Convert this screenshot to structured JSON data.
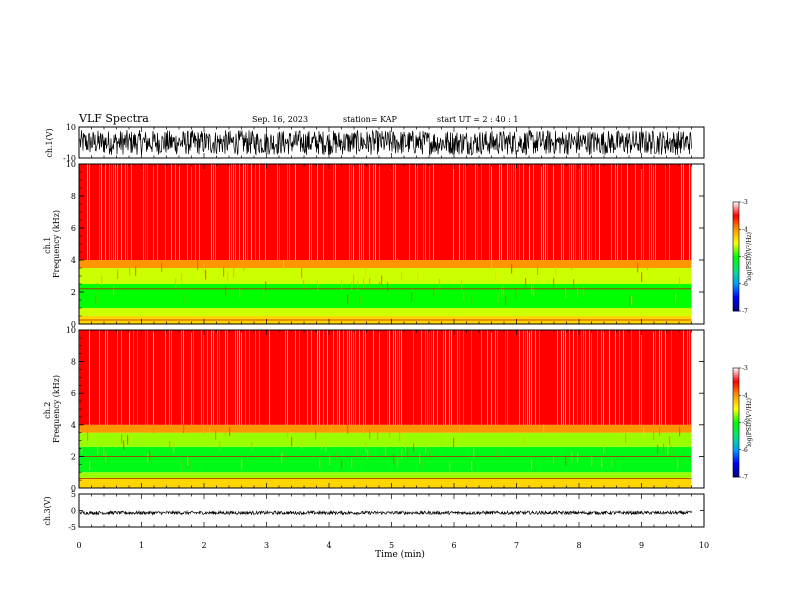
{
  "header": {
    "title": "VLF Spectra",
    "date": "Sep. 16, 2023",
    "station": "station= KAP",
    "start": "start UT =  2 : 40 : 1"
  },
  "chart_data": [
    {
      "type": "line",
      "name_id": "ch1-waveform",
      "ylabel": "ch.1(V)",
      "ylim": [
        -10,
        10
      ],
      "y_ticks": [
        "10",
        "-10"
      ],
      "xlim": [
        0,
        10
      ],
      "data_end_min": 9.8,
      "amplitude": [
        -8,
        8
      ],
      "color": "#000000"
    },
    {
      "type": "heatmap",
      "name_id": "ch1-spectrogram",
      "ylabel": "ch.1\nFrequency (kHz)",
      "ylabel_lines": [
        "ch.1",
        "Frequency (kHz)"
      ],
      "xlim": [
        0,
        10
      ],
      "ylim": [
        0,
        10
      ],
      "y_ticks": [
        "0",
        "2",
        "4",
        "6",
        "8",
        "10"
      ],
      "data_end_min": 9.8,
      "bands": [
        {
          "from_khz": 0,
          "to_khz": 0.5,
          "log_psd": -4.3
        },
        {
          "from_khz": 0.5,
          "to_khz": 1.0,
          "log_psd": -4.6
        },
        {
          "from_khz": 1.0,
          "to_khz": 2.5,
          "log_psd": -5.0
        },
        {
          "from_khz": 2.5,
          "to_khz": 3.5,
          "log_psd": -4.6
        },
        {
          "from_khz": 3.5,
          "to_khz": 4.0,
          "log_psd": -4.0
        },
        {
          "from_khz": 4.0,
          "to_khz": 10.0,
          "log_psd": -3.5
        }
      ],
      "lines_khz": [
        2.2,
        0.25
      ],
      "colorbar": {
        "label": "log(PSD)(V²/Hz)",
        "range": [
          -7,
          -3
        ],
        "ticks": [
          "-3",
          "-4",
          "-5",
          "-6",
          "-7"
        ],
        "colors": [
          "#ffffff",
          "#ff0000",
          "#ffa000",
          "#ffff00",
          "#00ff00",
          "#00c0ff",
          "#0000ff",
          "#000080"
        ]
      }
    },
    {
      "type": "heatmap",
      "name_id": "ch2-spectrogram",
      "ylabel": "ch.2\nFrequency (kHz)",
      "ylabel_lines": [
        "ch.2",
        "Frequency (kHz)"
      ],
      "xlim": [
        0,
        10
      ],
      "ylim": [
        0,
        10
      ],
      "y_ticks": [
        "0",
        "2",
        "4",
        "6",
        "8",
        "10"
      ],
      "data_end_min": 9.8,
      "bands": [
        {
          "from_khz": 0,
          "to_khz": 0.6,
          "log_psd": -4.3
        },
        {
          "from_khz": 0.6,
          "to_khz": 1.0,
          "log_psd": -4.7
        },
        {
          "from_khz": 1.0,
          "to_khz": 2.6,
          "log_psd": -5.1
        },
        {
          "from_khz": 2.6,
          "to_khz": 3.5,
          "log_psd": -4.7
        },
        {
          "from_khz": 3.5,
          "to_khz": 4.0,
          "log_psd": -4.0
        },
        {
          "from_khz": 4.0,
          "to_khz": 10.0,
          "log_psd": -3.5
        }
      ],
      "lines_khz": [
        2.0,
        0.6
      ],
      "colorbar": {
        "label": "log(PSD)(V²/Hz)",
        "range": [
          -7,
          -3
        ],
        "ticks": [
          "-3",
          "-4",
          "-5",
          "-6",
          "-7"
        ],
        "colors": [
          "#ffffff",
          "#ff0000",
          "#ffa000",
          "#ffff00",
          "#00ff00",
          "#00c0ff",
          "#0000ff",
          "#000080"
        ]
      }
    },
    {
      "type": "line",
      "name_id": "ch3-waveform",
      "ylabel": "ch.3(V)",
      "ylim": [
        -5,
        5
      ],
      "y_ticks": [
        "5",
        "0",
        "-5"
      ],
      "xlim": [
        0,
        10
      ],
      "data_end_min": 9.8,
      "amplitude": [
        -1.2,
        -0.2
      ],
      "color": "#000000"
    }
  ],
  "xaxis": {
    "label": "Time (min)",
    "ticks": [
      "0",
      "1",
      "2",
      "3",
      "4",
      "5",
      "6",
      "7",
      "8",
      "9",
      "10"
    ]
  }
}
